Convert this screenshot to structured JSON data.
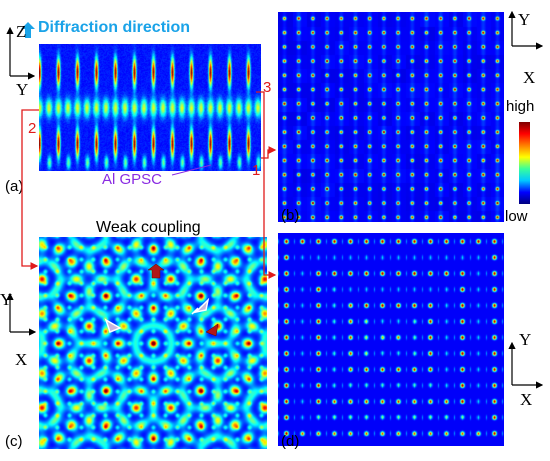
{
  "header": {
    "title": "Diffraction direction",
    "title_color": "#1aa3e8"
  },
  "panels": {
    "a": {
      "label": "(a)",
      "annotation": "Al GPSC",
      "annotation_color": "#8a2be2"
    },
    "b": {
      "label": "(b)"
    },
    "c": {
      "label": "(c)",
      "title": "Weak coupling"
    },
    "d": {
      "label": "(d)"
    }
  },
  "axes": {
    "a": {
      "vertical": "Z",
      "horizontal": "Y"
    },
    "b": {
      "vertical": "Y",
      "horizontal": "X"
    },
    "c": {
      "vertical": "Y",
      "horizontal": "X"
    },
    "d": {
      "vertical": "Y",
      "horizontal": "X"
    }
  },
  "colorbar": {
    "high_label": "high",
    "low_label": "low"
  },
  "markers": {
    "m1": "1",
    "m2": "2",
    "m3": "3",
    "color": "#e01b1b"
  },
  "colors": {
    "field_background": "#00007c",
    "arrow_light": "#c8b4dc",
    "arrow_dark": "#b01818"
  }
}
